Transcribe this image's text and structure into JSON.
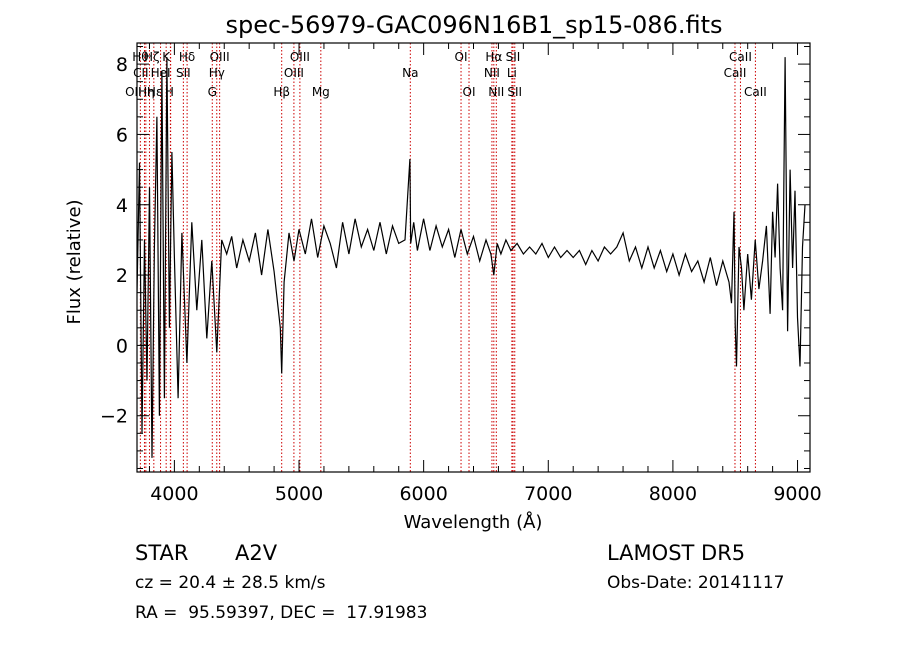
{
  "chart_data": {
    "type": "line",
    "title": "spec-56979-GAC096N16B1_sp15-086.fits",
    "xlabel": "Wavelength (Å)",
    "ylabel": "Flux (relative)",
    "xlim": [
      3700,
      9100
    ],
    "ylim": [
      -3.6,
      8.6
    ],
    "x_ticks": [
      4000,
      5000,
      6000,
      7000,
      8000,
      9000
    ],
    "y_ticks": [
      -2,
      0,
      2,
      4,
      6,
      8
    ],
    "grid": false,
    "series": [
      {
        "x": [
          3700,
          3720,
          3740,
          3760,
          3780,
          3800,
          3820,
          3840,
          3860,
          3880,
          3900,
          3920,
          3940,
          3960,
          3980,
          4000,
          4030,
          4060,
          4100,
          4140,
          4180,
          4220,
          4260,
          4300,
          4340,
          4380,
          4420,
          4460,
          4500,
          4550,
          4600,
          4650,
          4700,
          4750,
          4800,
          4850,
          4861,
          4880,
          4920,
          4960,
          5000,
          5050,
          5100,
          5150,
          5200,
          5250,
          5300,
          5350,
          5400,
          5450,
          5500,
          5550,
          5600,
          5650,
          5700,
          5750,
          5800,
          5850,
          5890,
          5896,
          5920,
          5950,
          6000,
          6050,
          6100,
          6150,
          6200,
          6250,
          6300,
          6350,
          6400,
          6450,
          6500,
          6540,
          6563,
          6590,
          6620,
          6660,
          6700,
          6750,
          6800,
          6850,
          6900,
          6950,
          7000,
          7050,
          7100,
          7150,
          7200,
          7250,
          7300,
          7350,
          7400,
          7450,
          7500,
          7550,
          7600,
          7650,
          7700,
          7750,
          7800,
          7850,
          7900,
          7950,
          8000,
          8050,
          8100,
          8150,
          8200,
          8250,
          8300,
          8350,
          8400,
          8450,
          8470,
          8490,
          8500,
          8510,
          8530,
          8550,
          8570,
          8600,
          8630,
          8660,
          8690,
          8720,
          8750,
          8780,
          8800,
          8820,
          8840,
          8860,
          8880,
          8900,
          8920,
          8940,
          8960,
          8980,
          9000,
          9020,
          9040,
          9060
        ],
        "y": [
          1.5,
          5.2,
          -2.5,
          3.0,
          -1.0,
          4.5,
          -3.2,
          2.8,
          6.5,
          -2.0,
          7.8,
          -1.5,
          8.2,
          0.5,
          5.5,
          2.5,
          -1.5,
          3.2,
          -0.5,
          3.5,
          1.0,
          3.0,
          0.2,
          2.4,
          -0.2,
          3.0,
          2.6,
          3.1,
          2.2,
          3.0,
          2.4,
          3.2,
          2.0,
          3.3,
          2.1,
          0.5,
          -0.8,
          1.8,
          3.2,
          2.4,
          3.3,
          2.6,
          3.6,
          2.5,
          3.4,
          2.9,
          2.2,
          3.5,
          2.6,
          3.6,
          2.8,
          3.3,
          2.7,
          3.5,
          2.6,
          3.4,
          2.9,
          3.0,
          5.3,
          2.9,
          3.5,
          2.7,
          3.6,
          2.7,
          3.4,
          2.8,
          3.3,
          2.5,
          3.3,
          2.6,
          3.1,
          2.4,
          3.0,
          2.6,
          2.0,
          2.9,
          2.6,
          3.0,
          2.7,
          2.9,
          2.6,
          2.8,
          2.6,
          2.9,
          2.5,
          2.8,
          2.5,
          2.7,
          2.5,
          2.7,
          2.3,
          2.7,
          2.4,
          2.8,
          2.6,
          2.8,
          3.2,
          2.4,
          2.8,
          2.2,
          2.8,
          2.2,
          2.7,
          2.1,
          2.6,
          2.0,
          2.6,
          2.1,
          2.4,
          1.8,
          2.5,
          1.7,
          2.4,
          1.8,
          1.2,
          3.8,
          0.6,
          -0.6,
          2.8,
          2.2,
          1.0,
          2.6,
          1.3,
          3.0,
          1.6,
          2.4,
          3.4,
          0.9,
          3.8,
          2.5,
          4.6,
          2.2,
          1.0,
          8.2,
          0.4,
          5.0,
          2.2,
          4.4,
          0.8,
          -0.6,
          2.8,
          4.0
        ]
      }
    ],
    "lines": [
      {
        "x": 3727,
        "label": "OII",
        "row": 3,
        "dx": -7
      },
      {
        "x": 3760,
        "label": "Hθ",
        "row": 1,
        "dx": -4
      },
      {
        "x": 3771,
        "label": "CII",
        "row": 2,
        "dx": -5
      },
      {
        "x": 3800,
        "label": "Hη",
        "row": 3,
        "dx": -3
      },
      {
        "x": 3835,
        "label": "Hζ",
        "row": 1,
        "dx": -2
      },
      {
        "x": 3889,
        "label": "HeI",
        "row": 2,
        "dx": 0
      },
      {
        "x": 3934,
        "label": "K",
        "row": 1,
        "dx": 0
      },
      {
        "x": 3968,
        "label": "H",
        "row": 3,
        "dx": -1
      },
      {
        "x": 3970,
        "label": "Hε",
        "row": 3,
        "dx": -16
      },
      {
        "x": 4072,
        "label": "SII",
        "row": 2,
        "dx": 0
      },
      {
        "x": 4102,
        "label": "Hδ",
        "row": 1,
        "dx": 0
      },
      {
        "x": 4304,
        "label": "G",
        "row": 3,
        "dx": 0
      },
      {
        "x": 4340,
        "label": "Hγ",
        "row": 2,
        "dx": 0
      },
      {
        "x": 4363,
        "label": "OIII",
        "row": 1,
        "dx": 0
      },
      {
        "x": 4861,
        "label": "Hβ",
        "row": 3,
        "dx": 0
      },
      {
        "x": 4959,
        "label": "OIII",
        "row": 2,
        "dx": 0
      },
      {
        "x": 5007,
        "label": "OIII",
        "row": 1,
        "dx": 0
      },
      {
        "x": 5175,
        "label": "Mg",
        "row": 3,
        "dx": 0
      },
      {
        "x": 5893,
        "label": "Na",
        "row": 2,
        "dx": 0
      },
      {
        "x": 6300,
        "label": "OI",
        "row": 1,
        "dx": 0
      },
      {
        "x": 6364,
        "label": "OI",
        "row": 3,
        "dx": 0
      },
      {
        "x": 6548,
        "label": "NII",
        "row": 2,
        "dx": 0
      },
      {
        "x": 6563,
        "label": "Hα",
        "row": 1,
        "dx": 0
      },
      {
        "x": 6583,
        "label": "NII",
        "row": 3,
        "dx": 0
      },
      {
        "x": 6708,
        "label": "Li",
        "row": 2,
        "dx": 0
      },
      {
        "x": 6717,
        "label": "SII",
        "row": 1,
        "dx": 0
      },
      {
        "x": 6731,
        "label": "SII",
        "row": 3,
        "dx": 0
      },
      {
        "x": 8498,
        "label": "CaII",
        "row": 2,
        "dx": 0
      },
      {
        "x": 8542,
        "label": "CaII",
        "row": 1,
        "dx": 0
      },
      {
        "x": 8662,
        "label": "CaII",
        "row": 3,
        "dx": 0
      }
    ],
    "colors": {
      "spectrum": "#000000",
      "line_markers": "#cc0000",
      "axes": "#000000"
    }
  },
  "info": {
    "object_class": "STAR",
    "subclass": "A2V",
    "redshift_line": "cz = 20.4 ± 28.5 km/s",
    "coords_line": "RA =  95.59397, DEC =  17.91983",
    "survey": "LAMOST DR5",
    "obs_date": "Obs-Date: 20141117"
  }
}
